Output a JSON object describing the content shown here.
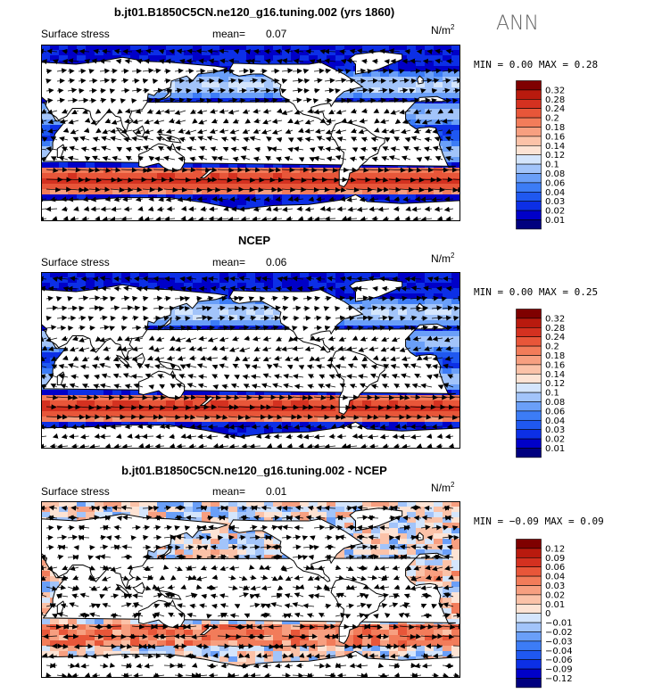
{
  "season_label": "ANN",
  "colors": {
    "abs_scale": [
      "#00007f",
      "#0000c8",
      "#0c2fe6",
      "#1f58f0",
      "#3c7cf6",
      "#6a9ff8",
      "#a2c4fa",
      "#d4e5fc",
      "#fde3d4",
      "#fbc2a8",
      "#f79f80",
      "#f27c5a",
      "#e85639",
      "#d43120",
      "#b91a0e",
      "#7f0000"
    ],
    "diff_scale": [
      "#00007f",
      "#0000c8",
      "#0c2fe6",
      "#1f58f0",
      "#3c7cf6",
      "#6a9ff8",
      "#a2c4fa",
      "#d4e5fc",
      "#fde3d4",
      "#fbc2a8",
      "#f79f80",
      "#f27c5a",
      "#e85639",
      "#d43120",
      "#b91a0e",
      "#7f0000"
    ],
    "land": "#ffffff",
    "coast": "#000000",
    "arrow": "#000000"
  },
  "panels": [
    {
      "title": "b.jt01.B1850C5CN.ne120_g16.tuning.002 (yrs 1860)",
      "variable": "Surface stress",
      "mean_label": "mean=",
      "mean_value": "0.07",
      "units_base": "N/m",
      "units_exp": "2",
      "min_label": "MIN =",
      "min_value": "0.00",
      "max_label": "MAX =",
      "max_value": "0.28",
      "colorbar_levels": [
        "0.32",
        "0.28",
        "0.24",
        "0.2",
        "0.18",
        "0.16",
        "0.14",
        "0.12",
        "0.1",
        "0.08",
        "0.06",
        "0.04",
        "0.03",
        "0.02",
        "0.01"
      ],
      "field_type": "abs",
      "field_mean": 0.07,
      "field_max": 0.28
    },
    {
      "title": "NCEP",
      "variable": "Surface stress",
      "mean_label": "mean=",
      "mean_value": "0.06",
      "units_base": "N/m",
      "units_exp": "2",
      "min_label": "MIN =",
      "min_value": "0.00",
      "max_label": "MAX =",
      "max_value": "0.25",
      "colorbar_levels": [
        "0.32",
        "0.28",
        "0.24",
        "0.2",
        "0.18",
        "0.16",
        "0.14",
        "0.12",
        "0.1",
        "0.08",
        "0.06",
        "0.04",
        "0.03",
        "0.02",
        "0.01"
      ],
      "field_type": "abs",
      "field_mean": 0.06,
      "field_max": 0.25
    },
    {
      "title": "b.jt01.B1850C5CN.ne120_g16.tuning.002 - NCEP",
      "variable": "Surface stress",
      "mean_label": "mean=",
      "mean_value": "0.01",
      "units_base": "N/m",
      "units_exp": "2",
      "min_label": "MIN =",
      "min_value": "−0.09",
      "max_label": "MAX =",
      "max_value": "0.09",
      "colorbar_levels": [
        "0.12",
        "0.09",
        "0.06",
        "0.04",
        "0.03",
        "0.02",
        "0.01",
        "0",
        "−0.01",
        "−0.02",
        "−0.03",
        "−0.04",
        "−0.06",
        "−0.09",
        "−0.12"
      ],
      "field_type": "diff",
      "field_mean": 0.01,
      "field_max": 0.09
    }
  ],
  "chart_data": [
    {
      "type": "heatmap",
      "title": "b.jt01.B1850C5CN.ne120_g16.tuning.002 (yrs 1860)",
      "variable": "Surface stress",
      "units": "N/m2",
      "mean": 0.07,
      "min": 0.0,
      "max": 0.28,
      "colorbar": [
        0.32,
        0.28,
        0.24,
        0.2,
        0.18,
        0.16,
        0.14,
        0.12,
        0.1,
        0.08,
        0.06,
        0.04,
        0.03,
        0.02,
        0.01
      ]
    },
    {
      "type": "heatmap",
      "title": "NCEP",
      "variable": "Surface stress",
      "units": "N/m2",
      "mean": 0.06,
      "min": 0.0,
      "max": 0.25,
      "colorbar": [
        0.32,
        0.28,
        0.24,
        0.2,
        0.18,
        0.16,
        0.14,
        0.12,
        0.1,
        0.08,
        0.06,
        0.04,
        0.03,
        0.02,
        0.01
      ]
    },
    {
      "type": "heatmap",
      "title": "b.jt01.B1850C5CN.ne120_g16.tuning.002 - NCEP",
      "variable": "Surface stress",
      "units": "N/m2",
      "mean": 0.01,
      "min": -0.09,
      "max": 0.09,
      "colorbar": [
        0.12,
        0.09,
        0.06,
        0.04,
        0.03,
        0.02,
        0.01,
        0,
        -0.01,
        -0.02,
        -0.03,
        -0.04,
        -0.06,
        -0.09,
        -0.12
      ]
    }
  ]
}
